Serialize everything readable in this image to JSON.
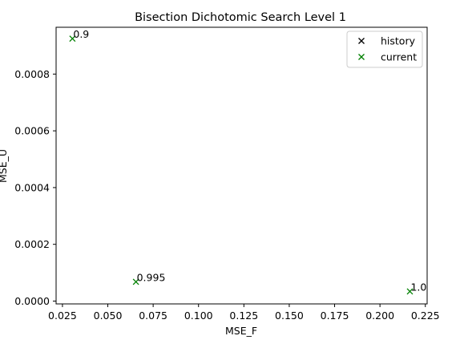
{
  "chart_data": {
    "type": "scatter",
    "title": "Bisection Dichotomic Search Level 1",
    "xlabel": "MSE_F",
    "ylabel": "MSE_U",
    "xlim": [
      0.0215,
      0.226
    ],
    "ylim": [
      -1e-05,
      0.000965
    ],
    "xticks": [
      0.025,
      0.05,
      0.075,
      0.1,
      0.125,
      0.15,
      0.175,
      0.2,
      0.225
    ],
    "xtick_labels": [
      "0.025",
      "0.050",
      "0.075",
      "0.100",
      "0.125",
      "0.150",
      "0.175",
      "0.200",
      "0.225"
    ],
    "yticks": [
      0.0,
      0.0002,
      0.0004,
      0.0006,
      0.0008
    ],
    "ytick_labels": [
      "0.0000",
      "0.0002",
      "0.0004",
      "0.0006",
      "0.0008"
    ],
    "grid": false,
    "legend": {
      "placement": "top-right",
      "entries": [
        {
          "label": "history",
          "color": "#000000",
          "marker": "x"
        },
        {
          "label": "current",
          "color": "#008000",
          "marker": "x"
        }
      ]
    },
    "series": [
      {
        "name": "history",
        "color": "#000000",
        "marker": "x",
        "points": []
      },
      {
        "name": "current",
        "color": "#008000",
        "marker": "x",
        "points": [
          {
            "x": 0.0305,
            "y": 0.000925,
            "label": "0.9"
          },
          {
            "x": 0.0655,
            "y": 6.8e-05,
            "label": "0.995"
          },
          {
            "x": 0.2165,
            "y": 3.4e-05,
            "label": "1.0"
          }
        ]
      }
    ]
  }
}
